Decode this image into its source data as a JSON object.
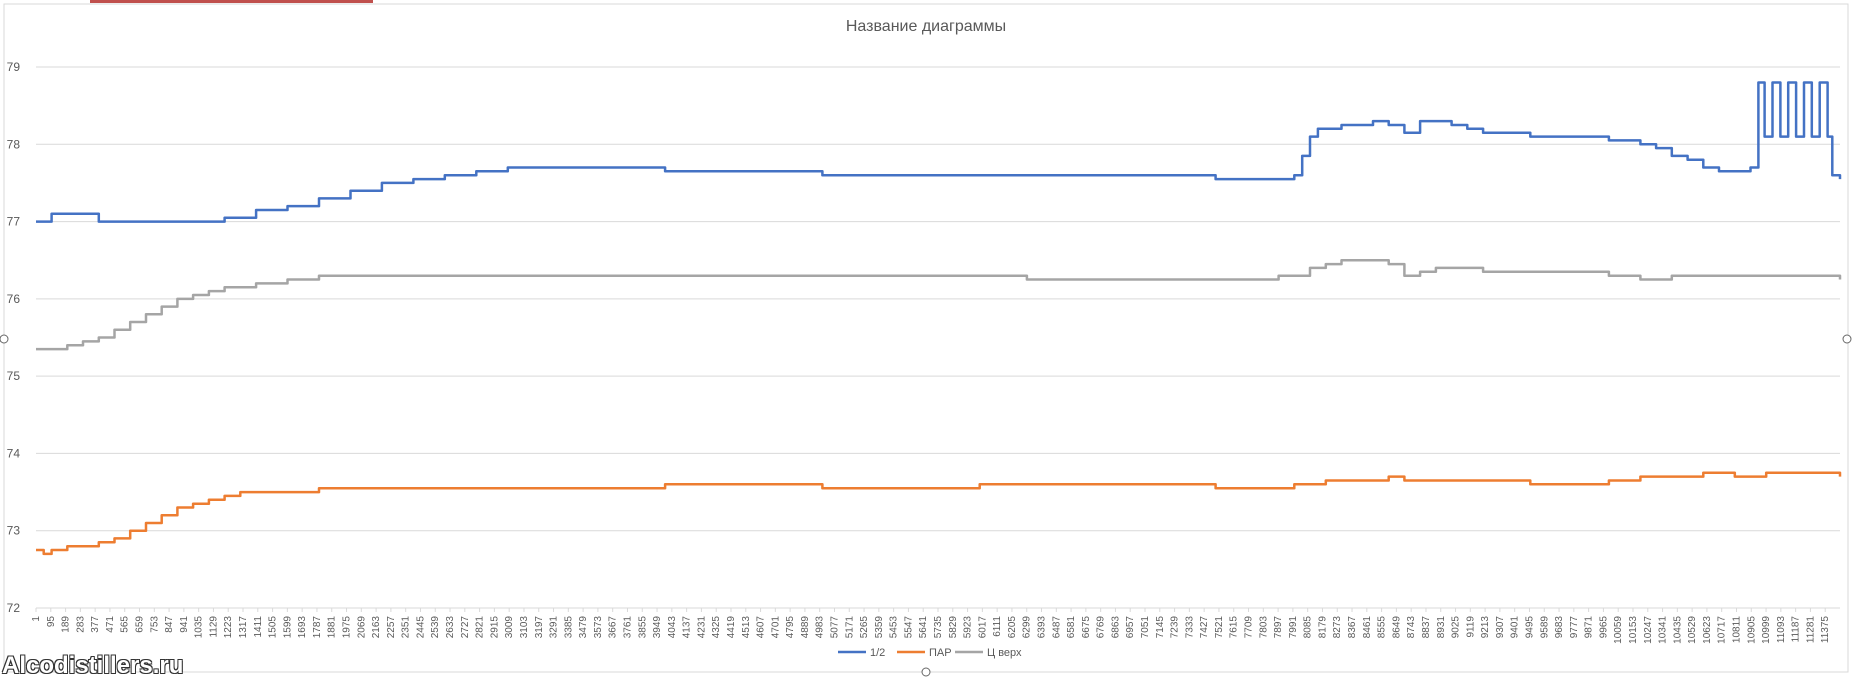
{
  "chart_data": {
    "type": "line",
    "title": "Название диаграммы",
    "xlabel": "",
    "ylabel": "",
    "ylim": [
      72,
      79
    ],
    "yticks": [
      72,
      73,
      74,
      75,
      76,
      77,
      78,
      79
    ],
    "xlim": [
      1,
      11469
    ],
    "grid": true,
    "legend_position": "bottom",
    "x_tick_labels": [
      1,
      95,
      189,
      283,
      377,
      471,
      565,
      659,
      753,
      847,
      941,
      1035,
      1129,
      1223,
      1317,
      1411,
      1505,
      1599,
      1693,
      1787,
      1881,
      1975,
      2069,
      2163,
      2257,
      2351,
      2445,
      2539,
      2633,
      2727,
      2821,
      2915,
      3009,
      3103,
      3197,
      3291,
      3385,
      3479,
      3573,
      3667,
      3761,
      3855,
      3949,
      4043,
      4137,
      4231,
      4325,
      4419,
      4513,
      4607,
      4701,
      4795,
      4889,
      4983,
      5077,
      5171,
      5265,
      5359,
      5453,
      5547,
      5641,
      5735,
      5829,
      5923,
      6017,
      6111,
      6205,
      6299,
      6393,
      6487,
      6581,
      6675,
      6769,
      6863,
      6957,
      7051,
      7145,
      7239,
      7333,
      7427,
      7521,
      7615,
      7709,
      7803,
      7897,
      7991,
      8085,
      8179,
      8273,
      8367,
      8461,
      8555,
      8649,
      8743,
      8837,
      8931,
      9025,
      9119,
      9213,
      9307,
      9401,
      9495,
      9589,
      9683,
      9777,
      9871,
      9965,
      10059,
      10153,
      10247,
      10341,
      10435,
      10529,
      10623,
      10717,
      10811,
      10905,
      10999,
      11093,
      11187,
      11281,
      11375
    ],
    "series": [
      {
        "name": "1/2",
        "color": "#4472c4",
        "x": [
          1,
          100,
          300,
          400,
          600,
          800,
          1000,
          1200,
          1400,
          1600,
          1800,
          2000,
          2200,
          2400,
          2600,
          2800,
          3000,
          4000,
          5000,
          6000,
          7000,
          7500,
          7950,
          8000,
          8050,
          8100,
          8150,
          8200,
          8300,
          8400,
          8500,
          8600,
          8700,
          8800,
          8900,
          9000,
          9100,
          9200,
          9300,
          9500,
          9800,
          10000,
          10200,
          10300,
          10400,
          10500,
          10600,
          10700,
          10800,
          10900,
          10950,
          10990,
          11040,
          11090,
          11140,
          11190,
          11240,
          11290,
          11340,
          11390,
          11420,
          11469
        ],
        "y": [
          77.0,
          77.1,
          77.1,
          77.0,
          77.0,
          77.0,
          77.0,
          77.05,
          77.15,
          77.2,
          77.3,
          77.4,
          77.5,
          77.55,
          77.6,
          77.65,
          77.7,
          77.65,
          77.6,
          77.6,
          77.6,
          77.55,
          77.55,
          77.6,
          77.85,
          78.1,
          78.2,
          78.2,
          78.25,
          78.25,
          78.3,
          78.25,
          78.15,
          78.3,
          78.3,
          78.25,
          78.2,
          78.15,
          78.15,
          78.1,
          78.1,
          78.05,
          78.0,
          77.95,
          77.85,
          77.8,
          77.7,
          77.65,
          77.65,
          77.7,
          78.8,
          78.1,
          78.8,
          78.1,
          78.8,
          78.1,
          78.8,
          78.1,
          78.8,
          78.1,
          77.6,
          77.55
        ]
      },
      {
        "name": "ПАР",
        "color": "#ed7d31",
        "x": [
          1,
          50,
          100,
          200,
          300,
          400,
          500,
          600,
          700,
          800,
          900,
          1000,
          1100,
          1200,
          1300,
          1400,
          1600,
          1800,
          2000,
          2200,
          3000,
          4000,
          5000,
          6000,
          7000,
          7500,
          8000,
          8200,
          8400,
          8500,
          8600,
          8700,
          8800,
          9000,
          9500,
          10000,
          10200,
          10400,
          10600,
          10800,
          11000,
          11200,
          11469
        ],
        "y": [
          72.75,
          72.7,
          72.75,
          72.8,
          72.8,
          72.85,
          72.9,
          73.0,
          73.1,
          73.2,
          73.3,
          73.35,
          73.4,
          73.45,
          73.5,
          73.5,
          73.5,
          73.55,
          73.55,
          73.55,
          73.55,
          73.6,
          73.55,
          73.6,
          73.6,
          73.55,
          73.6,
          73.65,
          73.65,
          73.65,
          73.7,
          73.65,
          73.65,
          73.65,
          73.6,
          73.65,
          73.7,
          73.7,
          73.75,
          73.7,
          73.75,
          73.75,
          73.7
        ]
      },
      {
        "name": "Ц верх",
        "color": "#a5a5a5",
        "x": [
          1,
          100,
          200,
          300,
          400,
          500,
          600,
          700,
          800,
          900,
          1000,
          1100,
          1200,
          1400,
          1600,
          1800,
          2000,
          2200,
          3000,
          4000,
          5000,
          6000,
          6300,
          7000,
          7500,
          7900,
          8000,
          8100,
          8200,
          8300,
          8400,
          8500,
          8600,
          8700,
          8800,
          8900,
          9000,
          9200,
          9600,
          10000,
          10200,
          10400,
          10800,
          11000,
          11469
        ],
        "y": [
          75.35,
          75.35,
          75.4,
          75.45,
          75.5,
          75.6,
          75.7,
          75.8,
          75.9,
          76.0,
          76.05,
          76.1,
          76.15,
          76.2,
          76.25,
          76.3,
          76.3,
          76.3,
          76.3,
          76.3,
          76.3,
          76.3,
          76.25,
          76.25,
          76.25,
          76.3,
          76.3,
          76.4,
          76.45,
          76.5,
          76.5,
          76.5,
          76.45,
          76.3,
          76.35,
          76.4,
          76.4,
          76.35,
          76.35,
          76.3,
          76.25,
          76.3,
          76.3,
          76.3,
          76.25
        ]
      }
    ]
  }
}
